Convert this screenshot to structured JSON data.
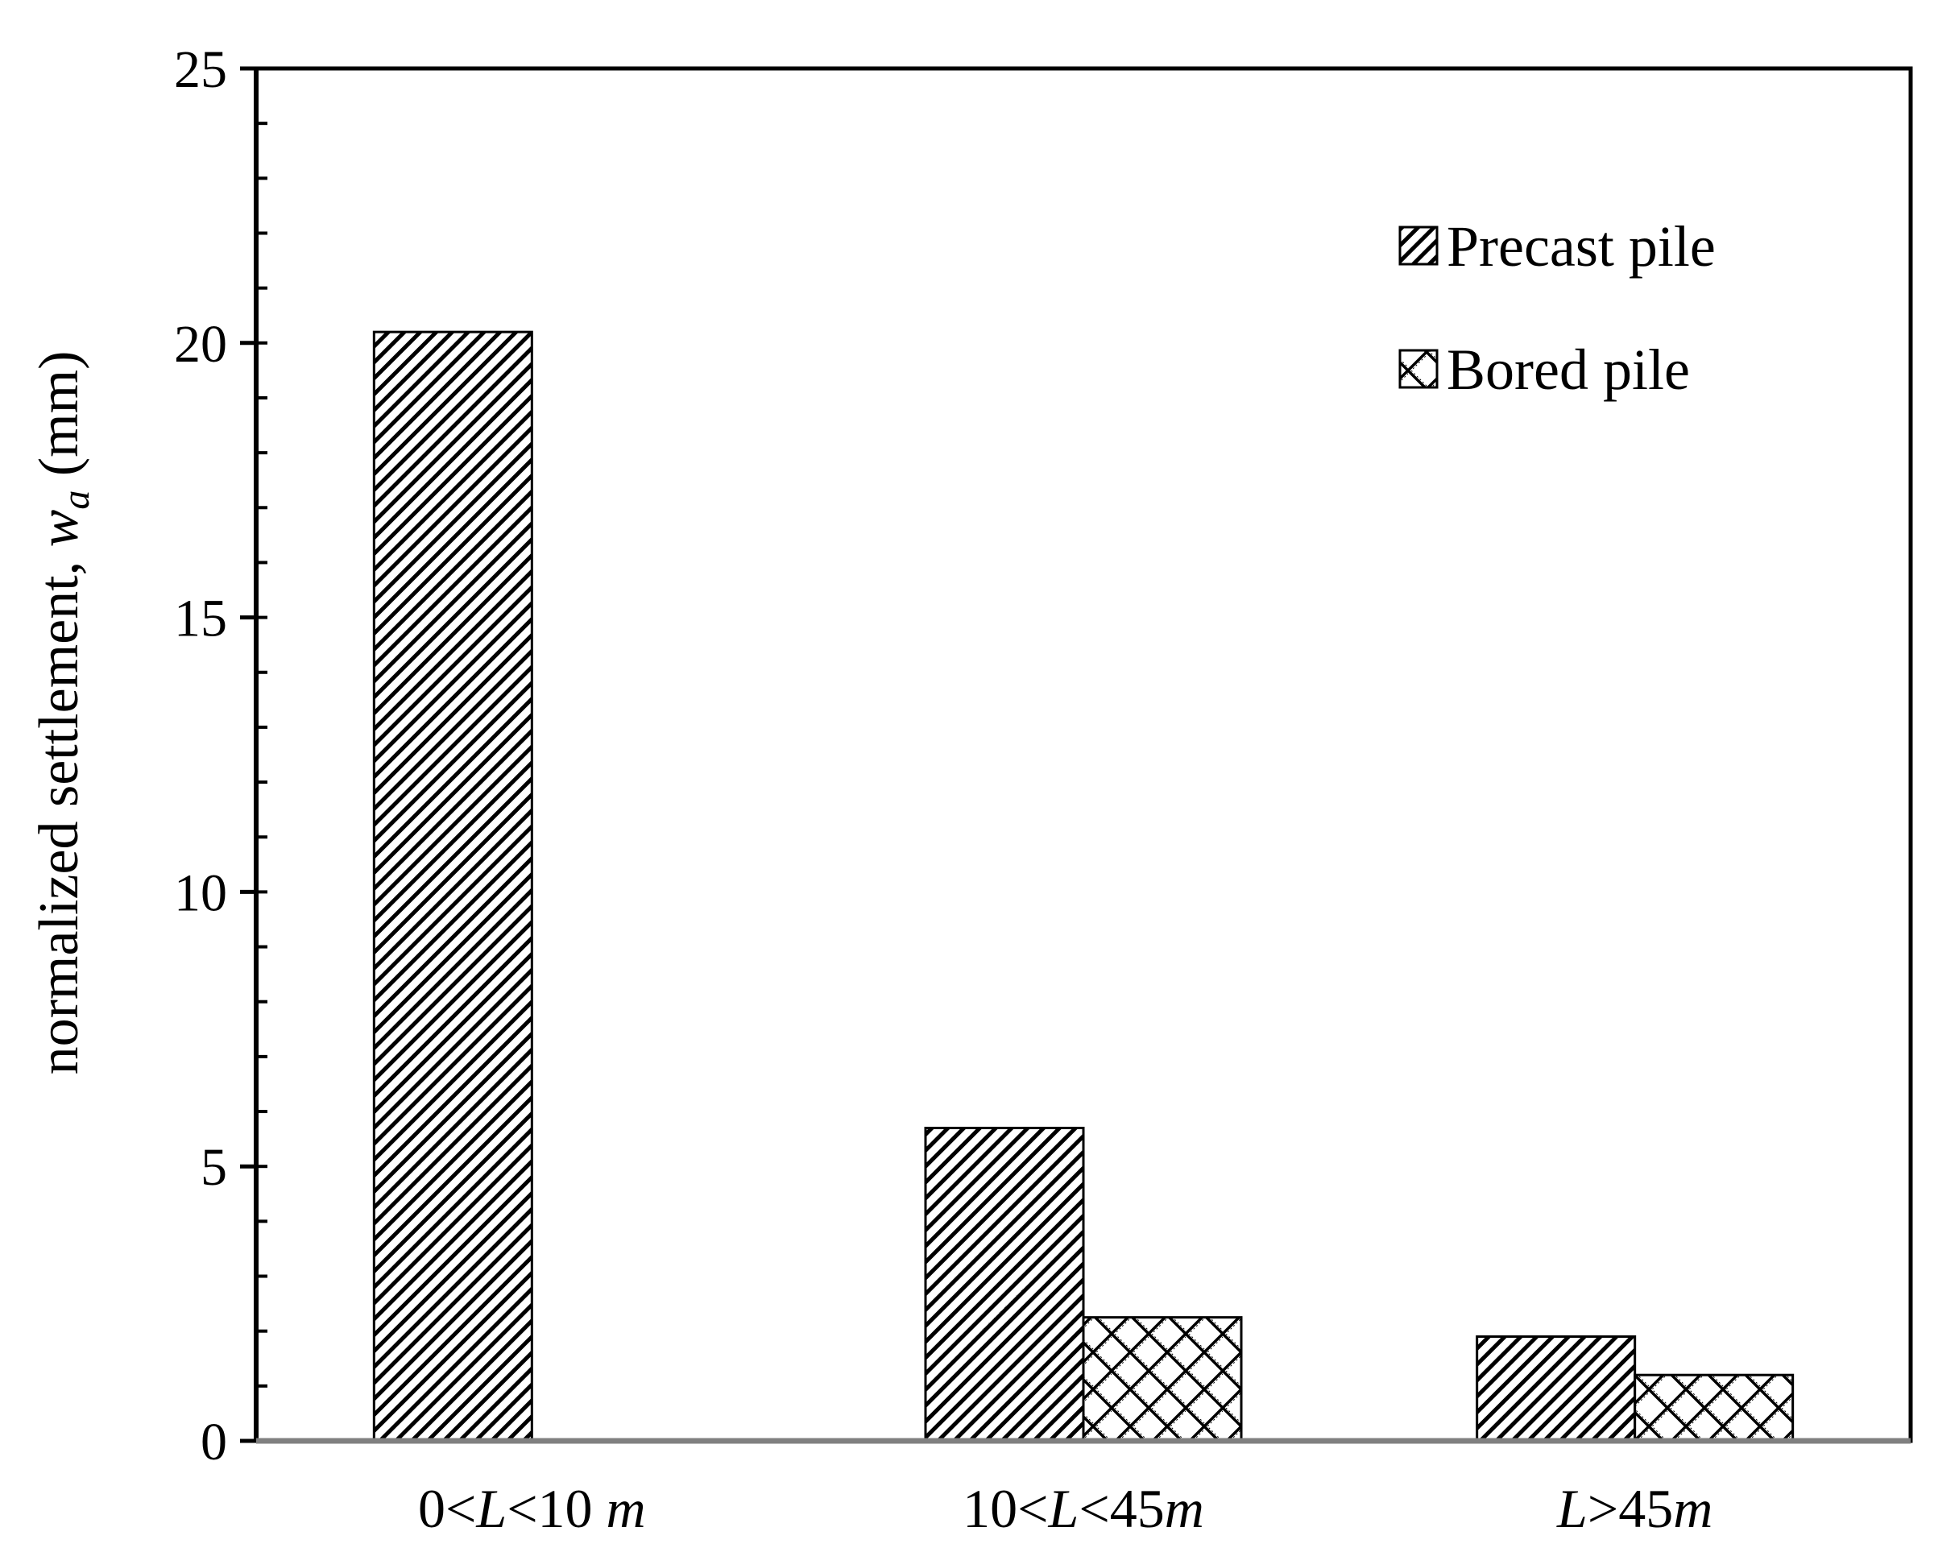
{
  "chart_data": {
    "type": "bar",
    "categories": [
      "0<L<10 m",
      "10<L<45m",
      "L>45m"
    ],
    "category_labels": [
      [
        {
          "t": "0<",
          "i": false
        },
        {
          "t": "L",
          "i": true
        },
        {
          "t": "<10 ",
          "i": false
        },
        {
          "t": "m",
          "i": true
        }
      ],
      [
        {
          "t": "10<",
          "i": false
        },
        {
          "t": "L",
          "i": true
        },
        {
          "t": "<45",
          "i": false
        },
        {
          "t": "m",
          "i": true
        }
      ],
      [
        {
          "t": "L",
          "i": true
        },
        {
          "t": ">45",
          "i": false
        },
        {
          "t": "m",
          "i": true
        }
      ]
    ],
    "series": [
      {
        "name": "Precast pile",
        "pattern": "diagonal-hatch",
        "values": [
          20.2,
          5.7,
          1.9
        ]
      },
      {
        "name": "Bored pile",
        "pattern": "diamond-cross",
        "values": [
          null,
          2.25,
          1.2
        ]
      }
    ],
    "ylabel": {
      "prefix": "normalized settlement, ",
      "var": "w",
      "sub": "a",
      "unit": " (mm)"
    },
    "ylim": [
      0,
      25
    ],
    "yticks": [
      0,
      5,
      10,
      15,
      20,
      25
    ],
    "y_minor_step": 1,
    "legend_position": "top-right",
    "grid": false,
    "colors": {
      "stroke": "#000000",
      "fill": "#ffffff",
      "baseline": "#808080"
    }
  }
}
